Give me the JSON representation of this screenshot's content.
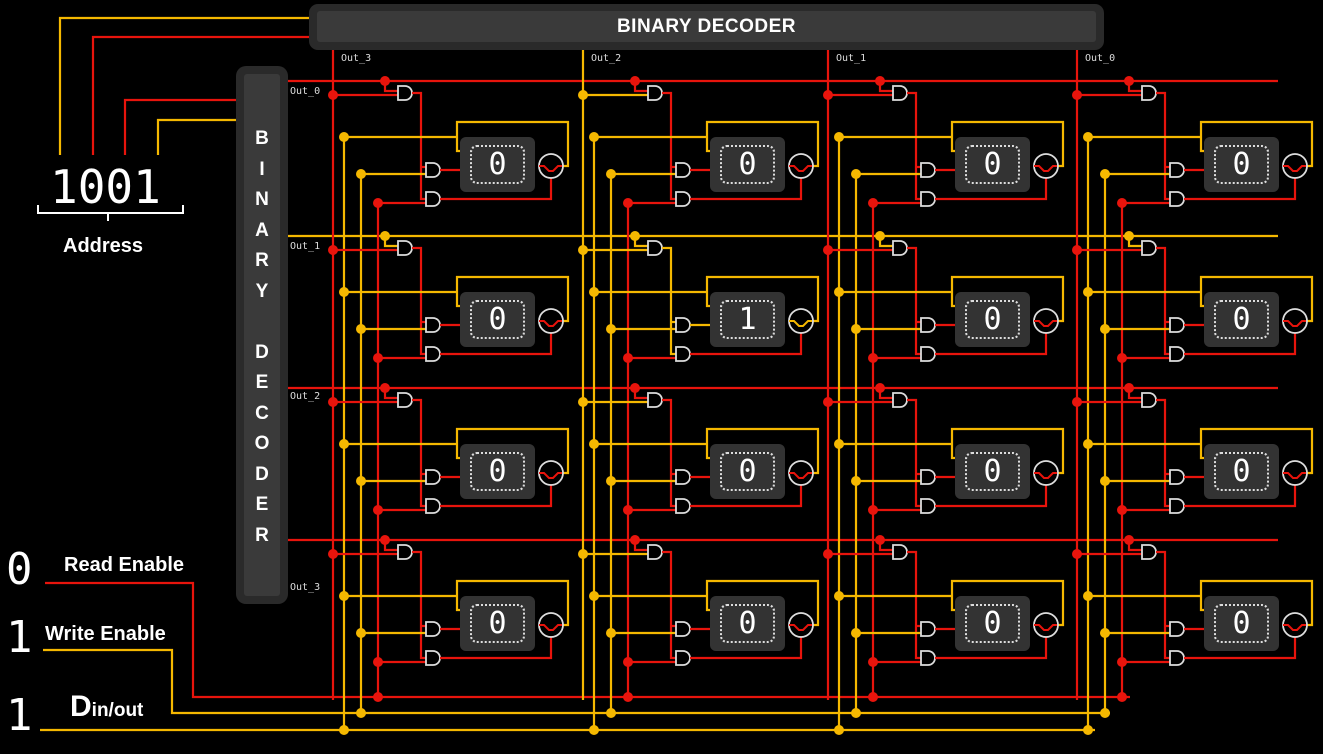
{
  "top_decoder": {
    "title": "BINARY DECODER",
    "outputs": [
      "Out_3",
      "Out_2",
      "Out_1",
      "Out_0"
    ]
  },
  "side_decoder": {
    "letters": [
      "B",
      "I",
      "N",
      "A",
      "R",
      "Y",
      "",
      "D",
      "E",
      "C",
      "O",
      "D",
      "E",
      "R"
    ],
    "outputs": [
      "Out_0",
      "Out_1",
      "Out_2",
      "Out_3"
    ]
  },
  "address": {
    "value": "1001",
    "label": "Address"
  },
  "controls": {
    "read_enable": {
      "value": "0",
      "label": "Read Enable"
    },
    "write_enable": {
      "value": "1",
      "label": "Write Enable"
    },
    "data": {
      "value": "1",
      "label_main": "D",
      "label_sub": "in/out"
    }
  },
  "memory_cells": [
    [
      "0",
      "0",
      "0",
      "0"
    ],
    [
      "0",
      "1",
      "0",
      "0"
    ],
    [
      "0",
      "0",
      "0",
      "0"
    ],
    [
      "0",
      "0",
      "0",
      "0"
    ]
  ],
  "active_row": 1,
  "active_column": 1,
  "colors": {
    "high": "#f5b800",
    "low": "#e8140c",
    "background": "#000000",
    "panel": "#2a2a2a"
  }
}
